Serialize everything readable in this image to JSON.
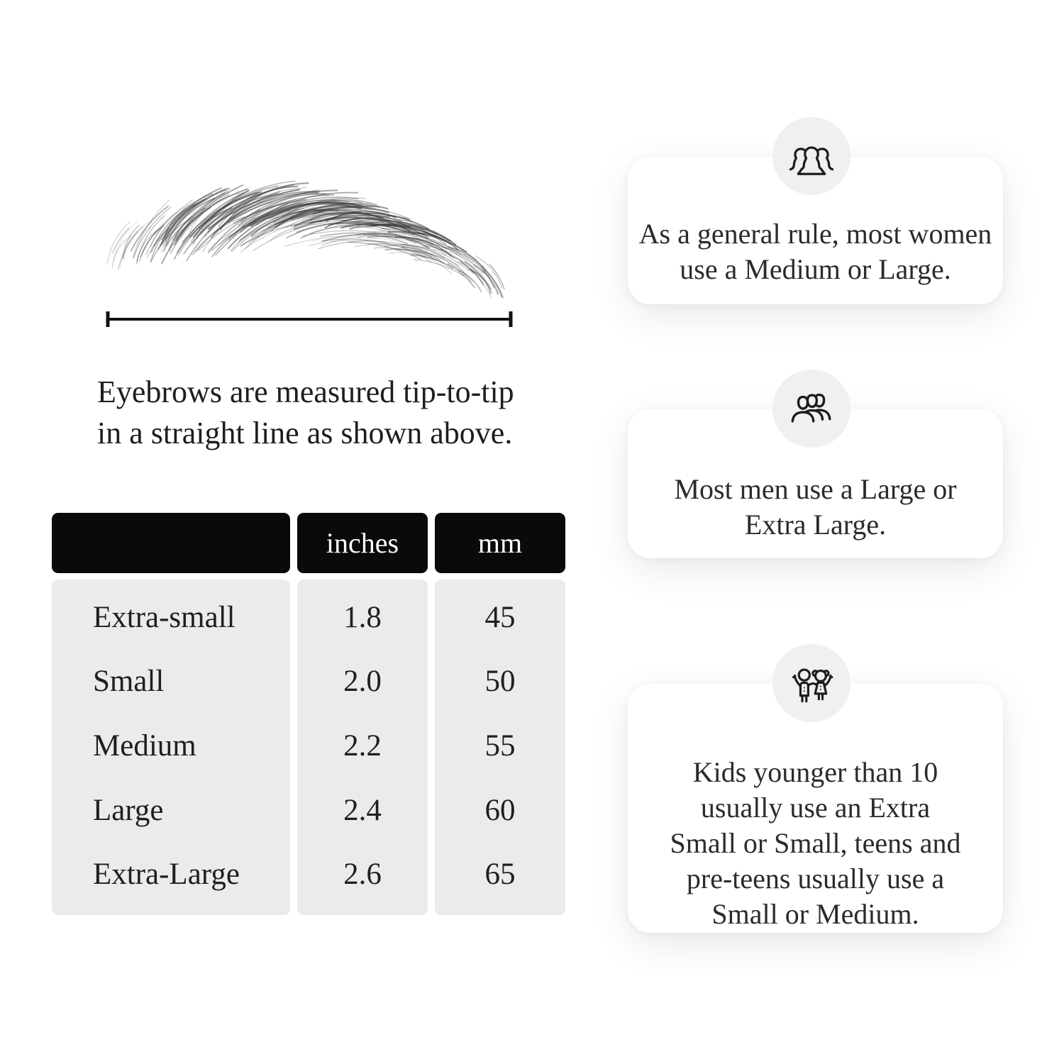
{
  "measurement": {
    "caption_line1": "Eyebrows are measured tip-to-tip",
    "caption_line2": "in a straight line as shown above."
  },
  "size_table": {
    "col_headers": [
      "",
      "inches",
      "mm"
    ],
    "rows": [
      {
        "label": "Extra-small",
        "inches": "1.8",
        "mm": "45"
      },
      {
        "label": "Small",
        "inches": "2.0",
        "mm": "50"
      },
      {
        "label": "Medium",
        "inches": "2.2",
        "mm": "55"
      },
      {
        "label": "Large",
        "inches": "2.4",
        "mm": "60"
      },
      {
        "label": "Extra-Large",
        "inches": "2.6",
        "mm": "65"
      }
    ]
  },
  "cards": [
    {
      "icon": "women-group-icon",
      "lines": [
        "As a general rule, most women",
        "use a Medium or Large."
      ]
    },
    {
      "icon": "men-group-icon",
      "lines": [
        "Most men use a Large or",
        "Extra Large."
      ]
    },
    {
      "icon": "kids-icon",
      "lines": [
        "Kids younger than 10",
        "usually use an Extra",
        "Small or Small, teens and",
        "pre-teens usually use a",
        "Small or Medium."
      ]
    }
  ],
  "colors": {
    "page_bg": "#ffffff",
    "table_header_bg": "#0a0a0a",
    "table_body_bg": "#ebebeb",
    "icon_circle_bg": "#f0f0f0",
    "card_bg": "#ffffff",
    "line_color": "#111111",
    "text_color": "#1f1f1f"
  }
}
